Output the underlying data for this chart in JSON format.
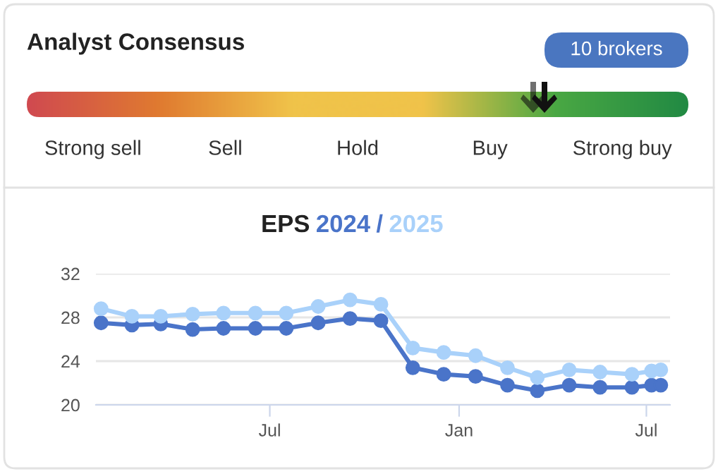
{
  "chart_data": [
    {
      "type": "other",
      "title": "Analyst Consensus",
      "categories": [
        "Strong sell",
        "Sell",
        "Hold",
        "Buy",
        "Strong buy"
      ],
      "annotations": [
        "10 brokers"
      ]
    },
    {
      "type": "line",
      "title": "EPS",
      "annotations": [
        "/"
      ],
      "x": [
        "2023-01-18",
        "2023-02-17",
        "2023-03-17",
        "2023-04-17",
        "2023-05-17",
        "2023-06-17",
        "2023-07-17",
        "2023-08-17",
        "2023-09-17",
        "2023-10-17",
        "2023-11-17",
        "2023-12-17",
        "2024-01-17",
        "2024-02-17",
        "2024-03-17",
        "2024-04-17",
        "2024-05-17",
        "2024-06-17",
        "2024-07-06",
        "2024-07-15"
      ],
      "series": [
        {
          "name": "2024",
          "color": "#4a74c9",
          "values": [
            27.5,
            27.3,
            27.4,
            26.9,
            27.0,
            27.0,
            27.0,
            27.5,
            27.9,
            27.7,
            23.4,
            22.8,
            22.6,
            21.8,
            21.3,
            21.8,
            21.6,
            21.6,
            21.8,
            21.8
          ]
        },
        {
          "name": "2025",
          "color": "#a9d1fa",
          "values": [
            28.8,
            28.1,
            28.1,
            28.3,
            28.4,
            28.4,
            28.4,
            29.0,
            29.6,
            29.2,
            25.2,
            24.8,
            24.5,
            23.4,
            22.5,
            23.2,
            23.0,
            22.8,
            23.1,
            23.2
          ]
        }
      ],
      "xlim": [
        "2023-01-13",
        "2024-07-24"
      ],
      "xticks": [
        {
          "value": "2023-07-01",
          "label": "Jul"
        },
        {
          "value": "2024-01-01",
          "label": "Jan"
        },
        {
          "value": "2024-07-01",
          "label": "Jul"
        }
      ],
      "ylim": [
        20,
        32
      ],
      "yticks": [
        20,
        24,
        28,
        32
      ],
      "grid": "y",
      "legend": false,
      "marker": "circle",
      "line_style": "solid"
    }
  ]
}
